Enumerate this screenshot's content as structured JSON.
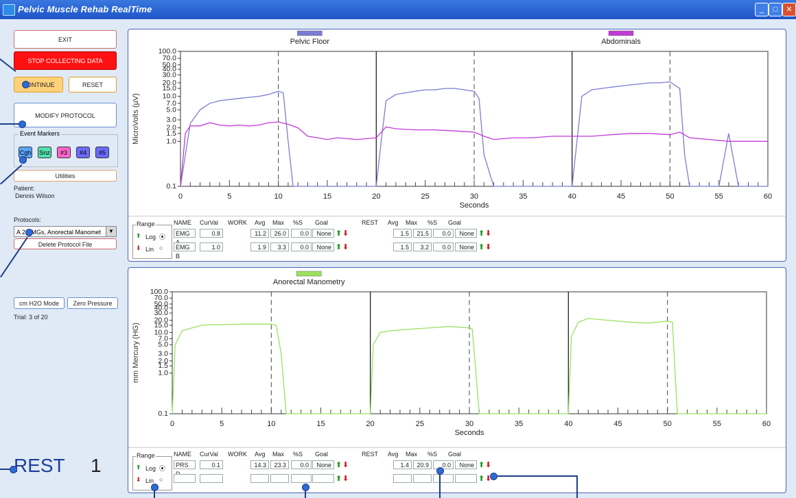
{
  "window": {
    "title": "Pelvic Muscle Rehab RealTime"
  },
  "left": {
    "exit": "EXIT",
    "stop": "STOP COLLECTING DATA",
    "continue": "CONTINUE",
    "reset": "RESET",
    "modify": "MODIFY PROTOCOL",
    "event_markers_title": "Event Markers",
    "markers": [
      "Cgh",
      "Snz",
      "#3",
      "#4",
      "#5"
    ],
    "marker_colors": [
      "#5aa6ff",
      "#55e0b0",
      "#ff66cc",
      "#6a6aff",
      "#6a6aff"
    ],
    "utilities": "Utilities",
    "patient_label": "Patient:",
    "patient_name": "Dennis Wilson",
    "protocols_label": "Protocols:",
    "protocol_value": "A 2 EMGs, Anorectal Manomet",
    "delete": "Delete Protocol File",
    "cm_h2o": "cm H2O Mode",
    "zero": "Zero Pressure",
    "trial": "Trial:  3  of  20",
    "state": "REST",
    "state_num": "1"
  },
  "top": {
    "legends": [
      {
        "label": "Pelvic Floor",
        "color": "#7b7bd6"
      },
      {
        "label": "Abdominals",
        "color": "#c03ad6"
      }
    ],
    "ylabel": "MicroVolts (µV)",
    "xlabel": "Seconds",
    "yticks": [
      "100.0",
      "70.0",
      "50.0",
      "40.0",
      "30.0",
      "20.0",
      "15.0",
      "10.0",
      "7.0",
      "5.0",
      "3.0",
      "2.0",
      "1.5",
      "1.0",
      "0.1"
    ],
    "xticks": [
      "0",
      "5",
      "10",
      "15",
      "20",
      "25",
      "30",
      "35",
      "40",
      "45",
      "50",
      "55",
      "60"
    ],
    "stats": {
      "range": "Range",
      "log": "Log",
      "lin": "Lin",
      "headers": [
        "NAME",
        "CurVal",
        "WORK",
        "Avg",
        "Max",
        "%S",
        "Goal",
        "REST",
        "Avg",
        "Max",
        "%S",
        "Goal"
      ],
      "rows": [
        {
          "name": "EMG A",
          "curval": "0.8",
          "avg": "11.2",
          "max": "26.0",
          "s": "0.0",
          "goal": "None",
          "ravg": "1.5",
          "rmax": "21.5",
          "rs": "0.0",
          "rgoal": "None"
        },
        {
          "name": "EMG B",
          "curval": "1.0",
          "avg": "1.9",
          "max": "3.3",
          "s": "0.0",
          "goal": "None",
          "ravg": "1.5",
          "rmax": "3.2",
          "rs": "0.0",
          "rgoal": "None"
        }
      ]
    }
  },
  "bottom": {
    "legends": [
      {
        "label": "Anorectal Manometry",
        "color": "#9be060"
      }
    ],
    "ylabel": "mm Mercury (HG)",
    "xlabel": "Seconds",
    "yticks": [
      "100.0",
      "70.0",
      "50.0",
      "40.0",
      "30.0",
      "20.0",
      "15.0",
      "10.0",
      "7.0",
      "5.0",
      "3.0",
      "2.0",
      "1.5",
      "1.0",
      "0.1"
    ],
    "xticks": [
      "0",
      "5",
      "10",
      "15",
      "20",
      "25",
      "30",
      "35",
      "40",
      "45",
      "50",
      "55",
      "60"
    ],
    "stats": {
      "range": "Range",
      "log": "Log",
      "lin": "Lin",
      "headers": [
        "NAME",
        "CurVal",
        "WORK",
        "Avg",
        "Max",
        "%S",
        "Goal",
        "REST",
        "Avg",
        "Max",
        "%S",
        "Goal"
      ],
      "rows": [
        {
          "name": "PRS D",
          "curval": "0.1",
          "avg": "14.3",
          "max": "23.3",
          "s": "0.0",
          "goal": "None",
          "ravg": "1.4",
          "rmax": "20.9",
          "rs": "0.0",
          "rgoal": "None"
        },
        {
          "name": "",
          "curval": "",
          "avg": "",
          "max": "",
          "s": "",
          "goal": "",
          "ravg": "",
          "rmax": "",
          "rs": "",
          "rgoal": ""
        }
      ]
    }
  },
  "chart_data": [
    {
      "type": "line",
      "title": "",
      "xlabel": "Seconds",
      "ylabel": "MicroVolts (µV)",
      "xlim": [
        0,
        60
      ],
      "yscale": "log",
      "ylim": [
        0.1,
        100
      ],
      "series": [
        {
          "name": "Pelvic Floor",
          "color": "#7b7bd6",
          "x": [
            0,
            1,
            2,
            3,
            4,
            5,
            6,
            7,
            8,
            9,
            10,
            10.5,
            11,
            11.5,
            12,
            15,
            19.5,
            20,
            20.5,
            21,
            22,
            23,
            24,
            25,
            26,
            27,
            28,
            29,
            30,
            30.5,
            31,
            32,
            35,
            39.5,
            40,
            41,
            42,
            43,
            44,
            45,
            46,
            47,
            48,
            49,
            50,
            51,
            51.5,
            52,
            55,
            56,
            57,
            60
          ],
          "y": [
            0.1,
            2.5,
            5,
            7,
            8,
            8.5,
            9,
            9.5,
            10,
            11,
            13,
            12,
            1,
            0.1,
            0.1,
            0.1,
            0.1,
            0.1,
            1,
            8,
            11,
            12,
            13,
            14,
            14,
            15,
            15,
            14,
            13,
            9,
            0.5,
            0.1,
            0.1,
            0.1,
            0.1,
            10,
            14,
            15,
            16,
            17,
            18,
            19,
            20,
            20,
            21,
            15,
            0.5,
            0.1,
            0.1,
            1.5,
            0.1,
            0.1
          ]
        },
        {
          "name": "Abdominals",
          "color": "#c03ad6",
          "x": [
            0,
            0.5,
            1,
            2,
            3,
            4,
            5,
            6,
            7,
            8,
            9,
            10,
            11,
            12,
            13,
            14,
            15,
            16,
            18,
            20,
            21,
            22,
            24,
            26,
            28,
            30,
            31,
            32,
            34,
            36,
            38,
            40,
            42,
            44,
            46,
            48,
            50,
            51,
            52,
            54,
            56,
            58,
            60
          ],
          "y": [
            0.1,
            1.5,
            2.2,
            2.2,
            2.6,
            2.3,
            2.2,
            2.3,
            2.2,
            2.3,
            2.6,
            2.7,
            2.4,
            2,
            1.3,
            1.2,
            1.1,
            1.2,
            1.1,
            1.2,
            2.1,
            1.9,
            1.8,
            1.8,
            1.7,
            1.6,
            1.3,
            1.1,
            1.2,
            1.2,
            1.3,
            1.3,
            1.3,
            1.4,
            1.5,
            1.5,
            1.4,
            1.6,
            1.2,
            1.1,
            1,
            1,
            1
          ]
        }
      ]
    },
    {
      "type": "line",
      "title": "",
      "xlabel": "Seconds",
      "ylabel": "mm Mercury (HG)",
      "xlim": [
        0,
        60
      ],
      "yscale": "log",
      "ylim": [
        0.1,
        100
      ],
      "series": [
        {
          "name": "Anorectal Manometry",
          "color": "#9be060",
          "x": [
            0,
            0.3,
            1,
            2,
            3,
            4,
            5,
            6,
            7,
            8,
            9,
            10,
            10.5,
            11,
            11.5,
            20,
            20.3,
            21,
            22,
            24,
            26,
            28,
            30,
            30.3,
            31,
            40,
            40.3,
            41,
            42,
            44,
            46,
            48,
            50,
            50.5,
            51,
            60
          ],
          "y": [
            0.1,
            5,
            11,
            13,
            15,
            15.5,
            15.5,
            15.8,
            16,
            16,
            16,
            16,
            15,
            3,
            0.1,
            0.1,
            5,
            10,
            11,
            12,
            13,
            14,
            13,
            12,
            0.1,
            0.1,
            8,
            18,
            22,
            20,
            18,
            17,
            19,
            18,
            0.1,
            0.1
          ]
        }
      ]
    }
  ]
}
